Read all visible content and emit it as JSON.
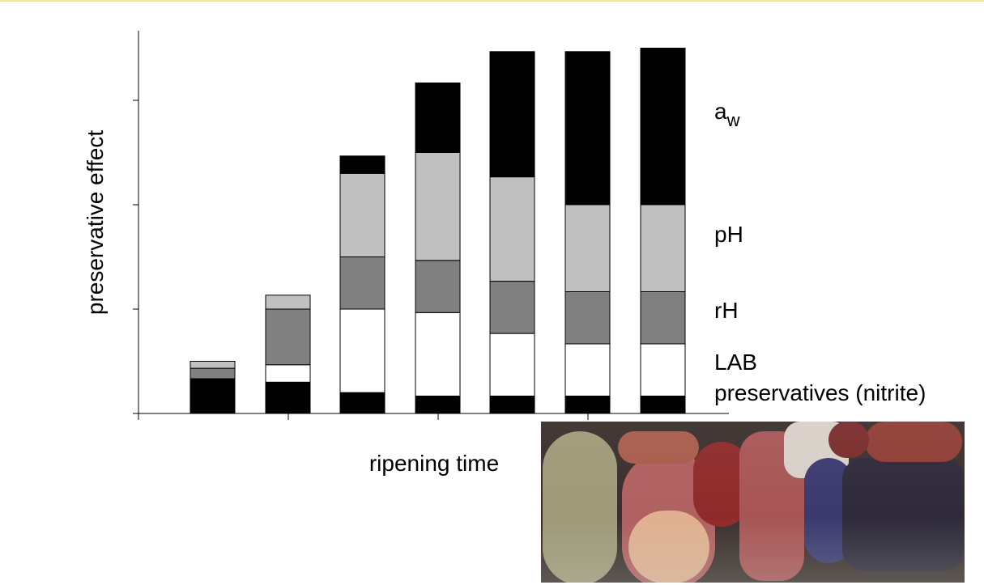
{
  "chart_data": {
    "type": "bar",
    "stacked": true,
    "title": "",
    "xlabel": "ripening time",
    "ylabel": "preservative effect",
    "ylim": [
      0,
      11
    ],
    "yticks": [
      0,
      3,
      6,
      9
    ],
    "categories": [
      "",
      "",
      "",
      "",
      "",
      "",
      ""
    ],
    "grid": false,
    "legend": "right-side labels",
    "series": [
      {
        "name": "preservatives (nitrite)",
        "color": "#000000",
        "values": [
          1.0,
          0.9,
          0.6,
          0.5,
          0.5,
          0.5,
          0.5
        ]
      },
      {
        "name": "LAB",
        "color": "#ffffff",
        "values": [
          0.0,
          0.5,
          2.4,
          2.4,
          1.8,
          1.5,
          1.5
        ]
      },
      {
        "name": "rH",
        "color": "#808080",
        "values": [
          0.3,
          1.6,
          1.5,
          1.5,
          1.5,
          1.5,
          1.5
        ]
      },
      {
        "name": "pH",
        "color": "#c0c0c0",
        "values": [
          0.2,
          0.4,
          2.4,
          3.1,
          3.0,
          2.5,
          2.5
        ]
      },
      {
        "name": "aw",
        "color": "#000000",
        "values": [
          0.0,
          0.0,
          0.5,
          2.0,
          3.6,
          4.4,
          4.5
        ]
      }
    ]
  },
  "labels": {
    "aw_main": "a",
    "aw_sub": "w",
    "pH": "pH",
    "rH": "rH",
    "LAB": "LAB",
    "nitrite": "preservatives (nitrite)"
  },
  "photo": {
    "icon": "cured-sausages-display-photo"
  }
}
